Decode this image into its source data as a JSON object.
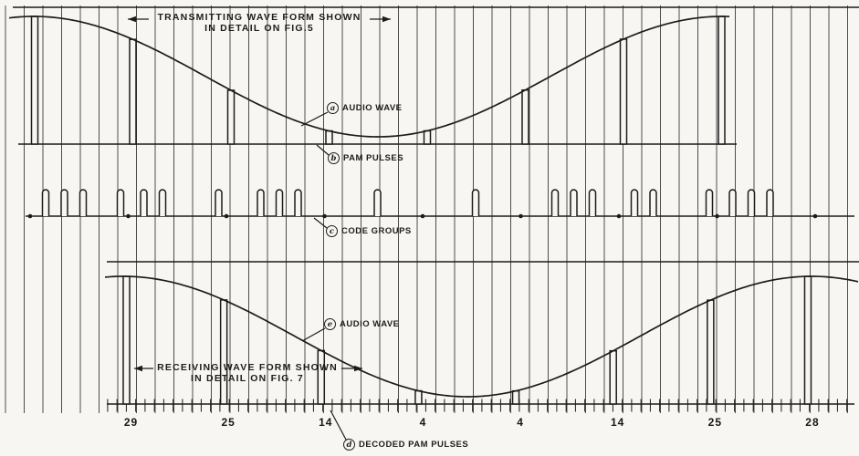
{
  "annotations": {
    "transmitting_line1": "TRANSMITTING WAVE FORM SHOWN",
    "transmitting_line2": "IN DETAIL ON FIG.5",
    "receiving_line1": "RECEIVING WAVE FORM SHOWN",
    "receiving_line2": "IN DETAIL ON FIG. 7"
  },
  "labels": {
    "audio_wave_top": {
      "letter": "a",
      "text": "AUDIO WAVE"
    },
    "pam_pulses": {
      "letter": "b",
      "text": "PAM PULSES"
    },
    "code_groups": {
      "letter": "c",
      "text": "CODE GROUPS"
    },
    "audio_wave_bottom": {
      "letter": "e",
      "text": "AUDIO WAVE"
    },
    "decoded_pam_pulses": {
      "letter": "d",
      "text": "DECODED PAM PULSES"
    }
  },
  "chart_data": {
    "type": "line",
    "title": "PCM transmission and reception waveforms",
    "rows": [
      "transmit: audio wave sampled as PAM pulses",
      "binary code groups",
      "receive: audio wave reconstructed from decoded PAM pulses"
    ],
    "sample_values": [
      29,
      25,
      14,
      4,
      4,
      14,
      25,
      28
    ],
    "code_groups_binary": [
      "11101",
      "11001",
      "01110",
      "00100",
      "00100",
      "01110",
      "11001",
      "11100"
    ],
    "decoded_sample_labels": [
      "29",
      "25",
      "14",
      "4",
      "4",
      "14",
      "25",
      "28"
    ],
    "bits_per_code_group": 5,
    "value_range": [
      0,
      31
    ],
    "grid": "vertical ruling across full figure"
  },
  "colors": {
    "background": "#f7f6f2",
    "ink": "#1c1c1c",
    "grid": "#4d4d4d"
  }
}
